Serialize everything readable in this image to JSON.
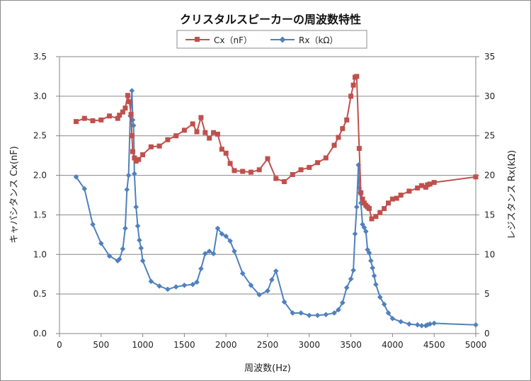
{
  "chart_data": {
    "type": "line",
    "title": "クリスタルスピーカーの周波数特性",
    "xlabel": "周波数(Hz)",
    "ylabel_left": "キャパシタンス Cx(nF)",
    "ylabel_right": "レジスタンス Rx(kΩ)",
    "xlim": [
      0,
      5000
    ],
    "ylim_left": [
      0,
      3.5
    ],
    "ylim_right": [
      0,
      35
    ],
    "x_ticks": [
      "0",
      "500",
      "1000",
      "1500",
      "2000",
      "2500",
      "3000",
      "3500",
      "4000",
      "4500",
      "5000"
    ],
    "y_left_ticks": [
      "0.0",
      "0.5",
      "1.0",
      "1.5",
      "2.0",
      "2.5",
      "3.0",
      "3.5"
    ],
    "y_right_ticks": [
      "0",
      "5",
      "10",
      "15",
      "20",
      "25",
      "30",
      "35"
    ],
    "grid": true,
    "legend_position": "top",
    "series": [
      {
        "name": "Cx（nF）",
        "axis": "left",
        "color": "#c0504d",
        "marker": "square",
        "points": [
          [
            200,
            2.68
          ],
          [
            300,
            2.72
          ],
          [
            400,
            2.69
          ],
          [
            500,
            2.7
          ],
          [
            600,
            2.75
          ],
          [
            700,
            2.72
          ],
          [
            720,
            2.76
          ],
          [
            760,
            2.8
          ],
          [
            790,
            2.85
          ],
          [
            820,
            3.01
          ],
          [
            840,
            2.93
          ],
          [
            860,
            2.77
          ],
          [
            870,
            2.5
          ],
          [
            880,
            2.3
          ],
          [
            900,
            2.22
          ],
          [
            920,
            2.18
          ],
          [
            950,
            2.2
          ],
          [
            1000,
            2.26
          ],
          [
            1100,
            2.36
          ],
          [
            1200,
            2.37
          ],
          [
            1300,
            2.45
          ],
          [
            1400,
            2.5
          ],
          [
            1500,
            2.57
          ],
          [
            1600,
            2.65
          ],
          [
            1650,
            2.55
          ],
          [
            1700,
            2.73
          ],
          [
            1750,
            2.54
          ],
          [
            1800,
            2.47
          ],
          [
            1850,
            2.54
          ],
          [
            1900,
            2.52
          ],
          [
            1950,
            2.33
          ],
          [
            2000,
            2.28
          ],
          [
            2050,
            2.15
          ],
          [
            2100,
            2.06
          ],
          [
            2200,
            2.05
          ],
          [
            2300,
            2.04
          ],
          [
            2400,
            2.07
          ],
          [
            2500,
            2.21
          ],
          [
            2600,
            1.96
          ],
          [
            2700,
            1.92
          ],
          [
            2800,
            2.01
          ],
          [
            2900,
            2.07
          ],
          [
            3000,
            2.1
          ],
          [
            3100,
            2.16
          ],
          [
            3200,
            2.22
          ],
          [
            3300,
            2.38
          ],
          [
            3350,
            2.48
          ],
          [
            3400,
            2.59
          ],
          [
            3450,
            2.7
          ],
          [
            3500,
            3.0
          ],
          [
            3530,
            3.14
          ],
          [
            3550,
            3.24
          ],
          [
            3570,
            3.25
          ],
          [
            3600,
            2.34
          ],
          [
            3620,
            1.78
          ],
          [
            3640,
            1.7
          ],
          [
            3660,
            1.65
          ],
          [
            3680,
            1.62
          ],
          [
            3700,
            1.6
          ],
          [
            3720,
            1.58
          ],
          [
            3750,
            1.45
          ],
          [
            3800,
            1.48
          ],
          [
            3850,
            1.53
          ],
          [
            3900,
            1.58
          ],
          [
            3950,
            1.65
          ],
          [
            4000,
            1.7
          ],
          [
            4050,
            1.71
          ],
          [
            4100,
            1.75
          ],
          [
            4200,
            1.8
          ],
          [
            4300,
            1.84
          ],
          [
            4350,
            1.87
          ],
          [
            4400,
            1.85
          ],
          [
            4420,
            1.88
          ],
          [
            4450,
            1.89
          ],
          [
            4500,
            1.91
          ],
          [
            5000,
            1.98
          ]
        ]
      },
      {
        "name": "Rx（kΩ）",
        "axis": "right",
        "color": "#4f81bd",
        "marker": "diamond",
        "points": [
          [
            200,
            19.8
          ],
          [
            300,
            18.3
          ],
          [
            400,
            13.8
          ],
          [
            500,
            11.4
          ],
          [
            600,
            9.8
          ],
          [
            700,
            9.2
          ],
          [
            720,
            9.4
          ],
          [
            760,
            10.7
          ],
          [
            790,
            13.3
          ],
          [
            810,
            18.2
          ],
          [
            830,
            20.0
          ],
          [
            850,
            27.5
          ],
          [
            870,
            30.7
          ],
          [
            880,
            27.0
          ],
          [
            890,
            26.3
          ],
          [
            900,
            20.2
          ],
          [
            920,
            16.0
          ],
          [
            940,
            13.6
          ],
          [
            960,
            11.8
          ],
          [
            980,
            10.8
          ],
          [
            1000,
            9.2
          ],
          [
            1100,
            6.6
          ],
          [
            1200,
            6.0
          ],
          [
            1300,
            5.6
          ],
          [
            1400,
            5.9
          ],
          [
            1500,
            6.1
          ],
          [
            1600,
            6.2
          ],
          [
            1650,
            6.5
          ],
          [
            1700,
            8.2
          ],
          [
            1750,
            10.1
          ],
          [
            1800,
            10.4
          ],
          [
            1850,
            10.1
          ],
          [
            1900,
            13.3
          ],
          [
            1950,
            12.6
          ],
          [
            2000,
            12.3
          ],
          [
            2050,
            11.7
          ],
          [
            2100,
            10.4
          ],
          [
            2200,
            7.6
          ],
          [
            2300,
            6.1
          ],
          [
            2400,
            4.9
          ],
          [
            2500,
            5.4
          ],
          [
            2550,
            6.8
          ],
          [
            2600,
            7.9
          ],
          [
            2700,
            4.0
          ],
          [
            2800,
            2.6
          ],
          [
            2900,
            2.6
          ],
          [
            3000,
            2.3
          ],
          [
            3100,
            2.3
          ],
          [
            3200,
            2.4
          ],
          [
            3300,
            2.6
          ],
          [
            3350,
            3.0
          ],
          [
            3400,
            3.9
          ],
          [
            3450,
            5.8
          ],
          [
            3500,
            6.9
          ],
          [
            3530,
            8.0
          ],
          [
            3550,
            12.6
          ],
          [
            3570,
            16.0
          ],
          [
            3590,
            21.3
          ],
          [
            3600,
            18.4
          ],
          [
            3610,
            17.8
          ],
          [
            3620,
            16.5
          ],
          [
            3640,
            13.8
          ],
          [
            3660,
            13.4
          ],
          [
            3680,
            12.9
          ],
          [
            3700,
            10.6
          ],
          [
            3720,
            10.2
          ],
          [
            3740,
            9.2
          ],
          [
            3760,
            8.3
          ],
          [
            3780,
            7.3
          ],
          [
            3800,
            6.2
          ],
          [
            3850,
            4.6
          ],
          [
            3900,
            3.7
          ],
          [
            3950,
            2.6
          ],
          [
            4000,
            1.9
          ],
          [
            4100,
            1.5
          ],
          [
            4200,
            1.2
          ],
          [
            4300,
            1.1
          ],
          [
            4350,
            1.0
          ],
          [
            4400,
            1.0
          ],
          [
            4420,
            1.1
          ],
          [
            4450,
            1.2
          ],
          [
            4500,
            1.3
          ],
          [
            5000,
            1.1
          ]
        ]
      }
    ]
  }
}
